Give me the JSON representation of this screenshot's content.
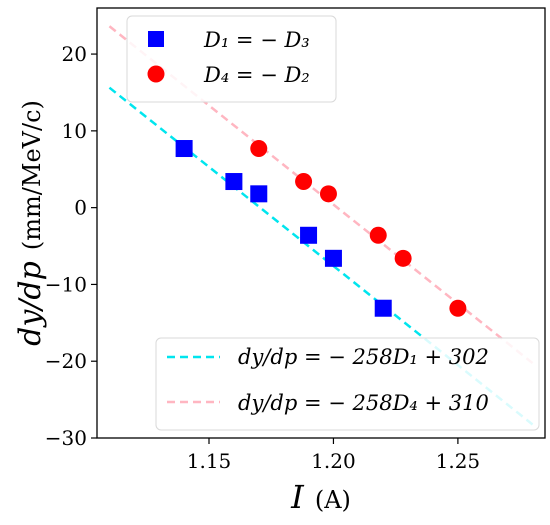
{
  "chart_data": {
    "type": "scatter",
    "xlabel": {
      "symbol": "I",
      "unit": "(A)"
    },
    "ylabel": {
      "symbol": "dy/dp",
      "unit": "(mm/MeV/c)"
    },
    "xlim": [
      1.105,
      1.285
    ],
    "ylim": [
      -30,
      26
    ],
    "xticks": [
      "1.15",
      "1.20",
      "1.25"
    ],
    "xtick_values": [
      1.15,
      1.2,
      1.25
    ],
    "yticks": [
      "−30",
      "−20",
      "−10",
      "0",
      "10",
      "20"
    ],
    "ytick_values": [
      -30,
      -20,
      -10,
      0,
      10,
      20
    ],
    "grid": false,
    "series": [
      {
        "name": "D₁ = − D₃",
        "marker": "square",
        "color": "#0000ff",
        "x": [
          1.14,
          1.16,
          1.17,
          1.19,
          1.2,
          1.22
        ],
        "y": [
          7.7,
          3.4,
          1.8,
          -3.6,
          -6.6,
          -13.1
        ]
      },
      {
        "name": "D₄ = − D₂",
        "marker": "circle",
        "color": "#ff0000",
        "x": [
          1.17,
          1.188,
          1.198,
          1.218,
          1.228,
          1.25
        ],
        "y": [
          7.7,
          3.4,
          1.8,
          -3.6,
          -6.6,
          -13.1
        ]
      }
    ],
    "fits": [
      {
        "name": "dy/dp = − 258D₁ + 302",
        "slope": -258,
        "intercept": 302,
        "color": "#00e5ee",
        "x_range": [
          1.11,
          1.28
        ]
      },
      {
        "name": "dy/dp = − 258D₄ + 310",
        "slope": -258,
        "intercept": 310,
        "color": "#ffb6c1",
        "x_range": [
          1.11,
          1.28
        ]
      }
    ],
    "legends": [
      "top-left",
      "bottom-right"
    ]
  }
}
